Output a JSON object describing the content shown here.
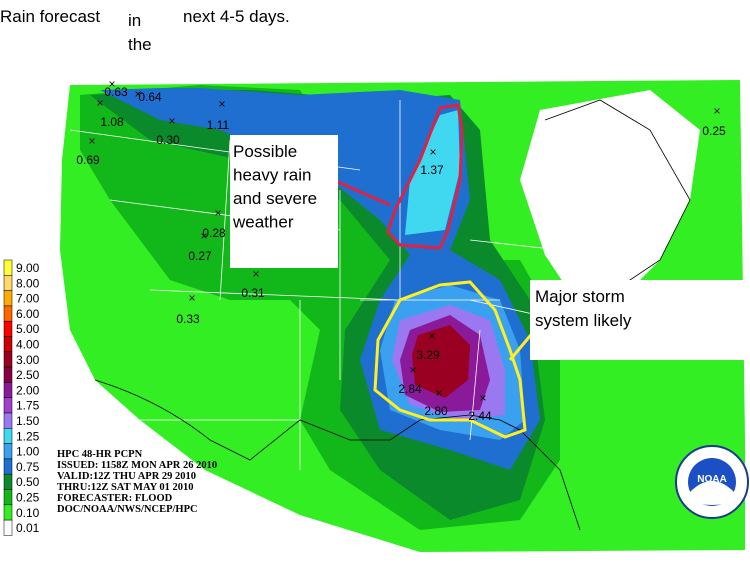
{
  "title": [
    "Rain forecast",
    "in",
    "the",
    "next 4-5 days."
  ],
  "annotations": [
    {
      "lines": [
        "Possible",
        "heavy rain",
        "and severe",
        "weather"
      ]
    },
    {
      "lines": [
        "Major storm",
        "system likely"
      ]
    }
  ],
  "legend": [
    {
      "label": "9.00",
      "color": "#ffff33"
    },
    {
      "label": "8.00",
      "color": "#ffd966"
    },
    {
      "label": "7.00",
      "color": "#ffaa00"
    },
    {
      "label": "6.00",
      "color": "#ff6600"
    },
    {
      "label": "5.00",
      "color": "#ff0000"
    },
    {
      "label": "4.00",
      "color": "#cc0000"
    },
    {
      "label": "3.00",
      "color": "#990022"
    },
    {
      "label": "2.50",
      "color": "#880044"
    },
    {
      "label": "2.00",
      "color": "#8a1a9a"
    },
    {
      "label": "1.75",
      "color": "#a040d0"
    },
    {
      "label": "1.50",
      "color": "#9a78f0"
    },
    {
      "label": "1.25",
      "color": "#40d8f0"
    },
    {
      "label": "1.00",
      "color": "#3aa0f0"
    },
    {
      "label": "0.75",
      "color": "#1f6fd0"
    },
    {
      "label": "0.50",
      "color": "#0a8a2a"
    },
    {
      "label": "0.25",
      "color": "#12b81a"
    },
    {
      "label": "0.10",
      "color": "#33ee22"
    },
    {
      "label": "0.01",
      "color": "#ffffff"
    }
  ],
  "points": [
    "0.63",
    "0.64",
    "1.08",
    "0.30",
    "1.11",
    "0.69",
    "1.37",
    "0.25",
    "0.28",
    "0.27",
    "0.31",
    "0.33",
    "3.29",
    "2.84",
    "2.80",
    "2.44"
  ],
  "info": [
    "HPC 48-HR PCPN",
    "ISSUED: 1158Z MON APR 26 2010",
    "VALID:12Z THU APR 29 2010",
    "THRU:12Z SAT MAY 01 2010",
    "FORECASTER: FLOOD",
    "DOC/NOAA/NWS/NCEP/HPC"
  ],
  "logo": "NOAA"
}
